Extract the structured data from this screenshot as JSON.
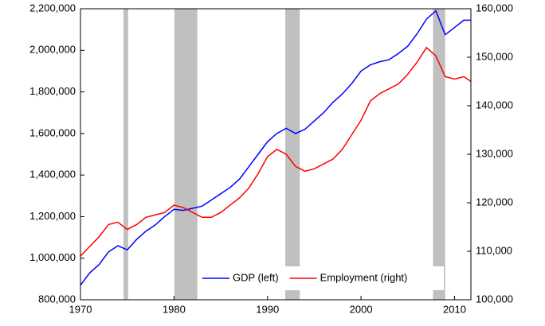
{
  "chart_data": {
    "type": "line",
    "x": [
      1970,
      1971,
      1972,
      1973,
      1974,
      1975,
      1976,
      1977,
      1978,
      1979,
      1980,
      1981,
      1982,
      1983,
      1984,
      1985,
      1986,
      1987,
      1988,
      1989,
      1990,
      1991,
      1992,
      1993,
      1994,
      1995,
      1996,
      1997,
      1998,
      1999,
      2000,
      2001,
      2002,
      2003,
      2004,
      2005,
      2006,
      2007,
      2008,
      2009,
      2010,
      2011,
      2011.75
    ],
    "series": [
      {
        "name": "GDP (left)",
        "color": "#0000ff",
        "axis": "y",
        "values": [
          870000,
          930000,
          970000,
          1030000,
          1060000,
          1040000,
          1090000,
          1130000,
          1160000,
          1200000,
          1235000,
          1230000,
          1240000,
          1250000,
          1280000,
          1310000,
          1340000,
          1380000,
          1440000,
          1500000,
          1560000,
          1600000,
          1625000,
          1600000,
          1620000,
          1660000,
          1700000,
          1750000,
          1790000,
          1840000,
          1900000,
          1930000,
          1945000,
          1955000,
          1985000,
          2020000,
          2080000,
          2150000,
          2190000,
          2075000,
          2110000,
          2145000,
          2145000
        ]
      },
      {
        "name": "Employment (right)",
        "color": "#ff0000",
        "axis": "y2",
        "values": [
          109000,
          111000,
          113000,
          115500,
          116000,
          114500,
          115500,
          117000,
          117500,
          118000,
          119500,
          119000,
          118000,
          117000,
          117000,
          118000,
          119500,
          121000,
          123000,
          126000,
          129500,
          131000,
          130000,
          127500,
          126500,
          127000,
          128000,
          129000,
          131000,
          134000,
          137000,
          141000,
          142500,
          143500,
          144500,
          146500,
          149000,
          152000,
          150300,
          146000,
          145500,
          146000,
          145000
        ]
      }
    ],
    "shaded_periods": [
      [
        1974.6,
        1975.1
      ],
      [
        1980.05,
        1982.5
      ],
      [
        1991.9,
        1993.45
      ],
      [
        2007.7,
        2009.0
      ]
    ],
    "shade_color": "#c0c0c0",
    "xlim": [
      1970,
      2011.75
    ],
    "xticks": [
      1970,
      1980,
      1990,
      2000,
      2010
    ],
    "ylim": [
      800000,
      2200000
    ],
    "yticks": [
      {
        "value": 800000,
        "label": "800,000"
      },
      {
        "value": 1000000,
        "label": "1,000,000"
      },
      {
        "value": 1200000,
        "label": "1,200,000"
      },
      {
        "value": 1400000,
        "label": "1,400,000"
      },
      {
        "value": 1600000,
        "label": "1,600,000"
      },
      {
        "value": 1800000,
        "label": "1,800,000"
      },
      {
        "value": 2000000,
        "label": "2,000,000"
      },
      {
        "value": 2200000,
        "label": "2,200,000"
      }
    ],
    "y2lim": [
      100000,
      160000
    ],
    "y2ticks": [
      {
        "value": 100000,
        "label": "100,000"
      },
      {
        "value": 110000,
        "label": "110,000"
      },
      {
        "value": 120000,
        "label": "120,000"
      },
      {
        "value": 130000,
        "label": "130,000"
      },
      {
        "value": 140000,
        "label": "140,000"
      },
      {
        "value": 150000,
        "label": "150,000"
      },
      {
        "value": 160000,
        "label": "160,000"
      }
    ],
    "grid": true,
    "legend": "bottom"
  }
}
